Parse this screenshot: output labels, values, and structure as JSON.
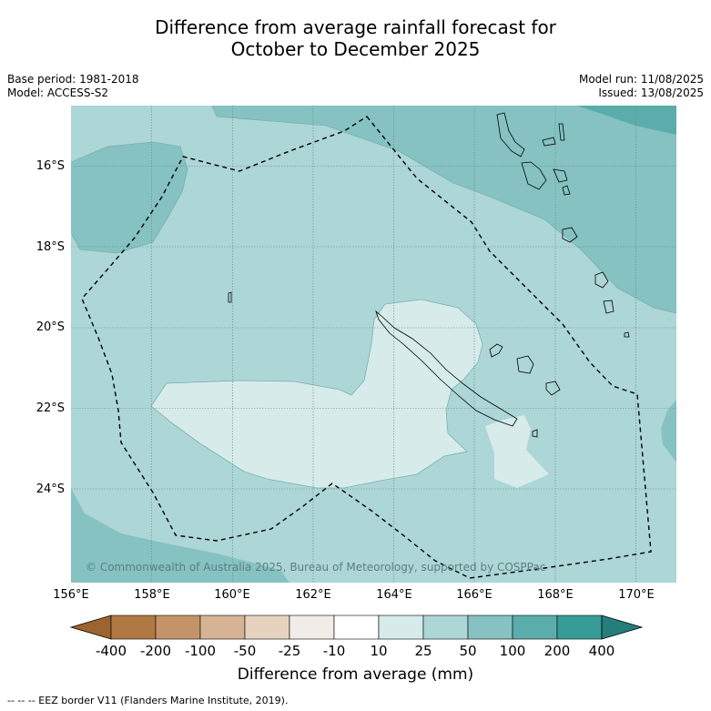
{
  "header": {
    "title_line1": "Difference from average rainfall forecast for",
    "title_line2": "October to December 2025",
    "base_period": "Base period: 1981-2018",
    "model": "Model: ACCESS-S2",
    "model_run": "Model run: 11/08/2025",
    "issued": "Issued: 13/08/2025"
  },
  "map": {
    "lat_labels": [
      "16°S",
      "18°S",
      "20°S",
      "22°S",
      "24°S"
    ],
    "lon_labels": [
      "156°E",
      "158°E",
      "160°E",
      "162°E",
      "164°E",
      "166°E",
      "168°E",
      "170°E"
    ],
    "copyright": "© Commonwealth of Australia 2025, Bureau of Meteorology, supported by COSPPac",
    "colors": {
      "band_10_25": "#d6ebea",
      "band_25_50": "#add6d6",
      "band_50_100": "#85c2c1",
      "band_100_200": "#5aadab",
      "gridline": "#5f8c8c",
      "eez_border": "#000000"
    }
  },
  "colorbar": {
    "ticks": [
      "-400",
      "-200",
      "-100",
      "-50",
      "-25",
      "-10",
      "10",
      "25",
      "50",
      "100",
      "200",
      "400"
    ],
    "colors": [
      "#9c6430",
      "#b07842",
      "#c49468",
      "#d5b394",
      "#e7d2c0",
      "#f1ece8",
      "#ffffff",
      "#d6ebea",
      "#add6d6",
      "#85c2c1",
      "#5aadab",
      "#379c97",
      "#247f7c"
    ],
    "label": "Difference from average (mm)"
  },
  "footnote": "-- -- -- EEZ border V11 (Flanders Marine Institute, 2019)."
}
